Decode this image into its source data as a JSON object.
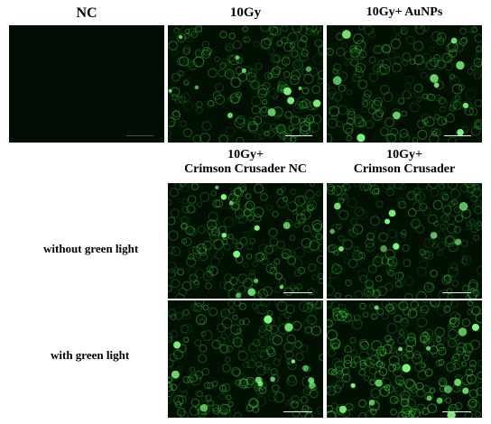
{
  "column_headers": {
    "nc": "NC",
    "gy10": "10Gy",
    "gy10_aunps": "10Gy+ AuNPs",
    "gy10_crimson_nc_line1": "10Gy+",
    "gy10_crimson_nc_line2": "Crimson Crusader NC",
    "gy10_crimson_line1": "10Gy+",
    "gy10_crimson_line2": "Crimson Crusader"
  },
  "row_labels": {
    "without_green_light": "without green light",
    "with_green_light": "with green light"
  },
  "colors": {
    "panel_background": "#021003",
    "nc_background": "#020d03",
    "fluorescence_green": "#3fdc3f"
  },
  "panels": [
    {
      "id": "nc",
      "intensity": 0.0
    },
    {
      "id": "gy10",
      "intensity": 0.55
    },
    {
      "id": "gy10_aunps",
      "intensity": 0.45
    },
    {
      "id": "crimson_nc_without_light",
      "intensity": 0.5
    },
    {
      "id": "crimson_without_light",
      "intensity": 0.45
    },
    {
      "id": "crimson_nc_with_light",
      "intensity": 0.55
    },
    {
      "id": "crimson_with_light",
      "intensity": 0.85
    }
  ]
}
